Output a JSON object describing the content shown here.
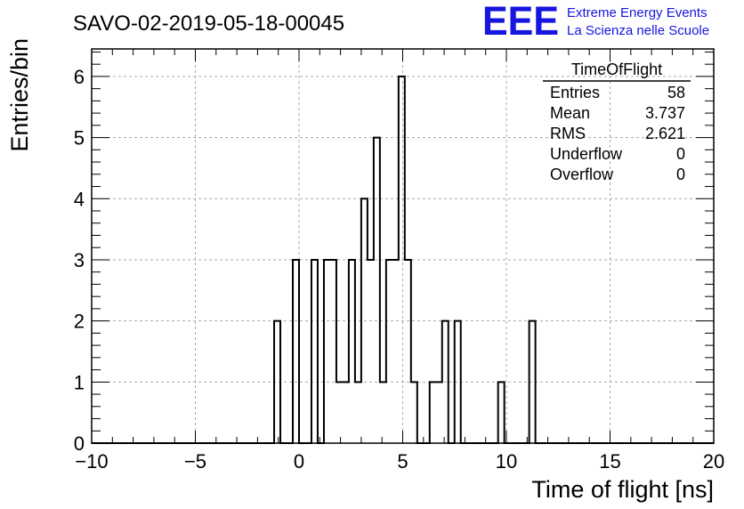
{
  "chart_data": {
    "type": "histogram",
    "title": "SAVO-02-2019-05-18-00045",
    "xlabel": "Time of flight [ns]",
    "ylabel": "Entries/bin",
    "xlim": [
      -10,
      20
    ],
    "ylim": [
      0,
      6.45
    ],
    "grid": true,
    "x_ticks": [
      "−10",
      "−5",
      "0",
      "5",
      "10",
      "15",
      "20"
    ],
    "y_ticks": [
      "0",
      "1",
      "2",
      "3",
      "4",
      "5",
      "6"
    ],
    "bin_width": 0.3,
    "bins": [
      {
        "x": -1.2,
        "count": 2
      },
      {
        "x": -0.3,
        "count": 3
      },
      {
        "x": 0.6,
        "count": 3
      },
      {
        "x": 0.9,
        "count": 0
      },
      {
        "x": 1.2,
        "count": 3
      },
      {
        "x": 1.5,
        "count": 3
      },
      {
        "x": 1.8,
        "count": 1
      },
      {
        "x": 2.1,
        "count": 1
      },
      {
        "x": 2.4,
        "count": 3
      },
      {
        "x": 2.7,
        "count": 1
      },
      {
        "x": 3.0,
        "count": 4
      },
      {
        "x": 3.3,
        "count": 3
      },
      {
        "x": 3.6,
        "count": 5
      },
      {
        "x": 3.9,
        "count": 1
      },
      {
        "x": 4.2,
        "count": 3
      },
      {
        "x": 4.5,
        "count": 3
      },
      {
        "x": 4.8,
        "count": 6
      },
      {
        "x": 5.1,
        "count": 3
      },
      {
        "x": 5.4,
        "count": 1
      },
      {
        "x": 6.3,
        "count": 1
      },
      {
        "x": 6.6,
        "count": 1
      },
      {
        "x": 6.9,
        "count": 2
      },
      {
        "x": 7.2,
        "count": 0
      },
      {
        "x": 7.5,
        "count": 2
      },
      {
        "x": 9.6,
        "count": 1
      },
      {
        "x": 11.1,
        "count": 2
      }
    ]
  },
  "stats": {
    "title": "TimeOfFlight",
    "rows": [
      {
        "label": "Entries",
        "value": "58"
      },
      {
        "label": "Mean",
        "value": "3.737"
      },
      {
        "label": "RMS",
        "value": "2.621"
      },
      {
        "label": "Underflow",
        "value": "0"
      },
      {
        "label": "Overflow",
        "value": "0"
      }
    ]
  },
  "logo": {
    "mark": "EEE",
    "line1": "Extreme Energy Events",
    "line2": "La Scienza nelle Scuole",
    "color": "#1616e0"
  }
}
